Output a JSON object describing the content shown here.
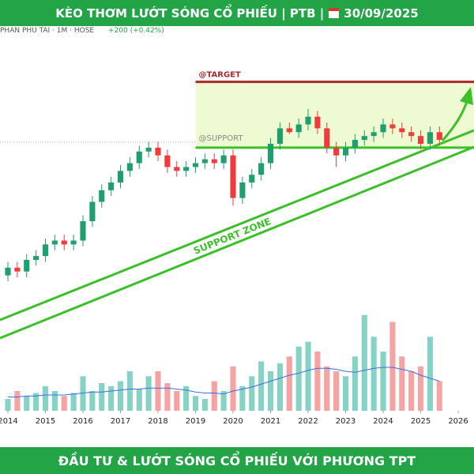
{
  "chart_data": {
    "type": "candlestick",
    "title": "KÈO THƠM LƯỚT SÓNG CỔ PHIẾU | PTB |",
    "date": "30/09/2025",
    "subtitle": "PHAN PHU TAI · 1M · HOSE",
    "change": "+200 (+0.42%)",
    "footer": "ĐẦU TƯ & LƯỚT SÓNG CỔ PHIẾU VỚI PHƯƠNG TPT",
    "zone_label": "SUPPORT ZONE",
    "target_label": "@TARGET",
    "support_label": "@SUPPORT",
    "target": 86,
    "support": 69,
    "target_color": "#a52a2a",
    "support_color": "#3cc02a",
    "zone_fill": "#eefbd2",
    "up_color": "#1f9e6e",
    "down_color": "#ef3b3b",
    "volume_up_color": "#86d3c6",
    "volume_down_color": "#f5a3a3",
    "ma_color": "#3d6fe0",
    "xlim": [
      2013.79,
      2026.42
    ],
    "xticks": [
      2014,
      2015,
      2016,
      2017,
      2018,
      2019,
      2020,
      2021,
      2022,
      2023,
      2024,
      2025,
      2026
    ],
    "ylim": [
      0,
      100
    ],
    "volume_lim": [
      0,
      100
    ],
    "x": [
      2014,
      2014.25,
      2014.5,
      2014.75,
      2015,
      2015.25,
      2015.5,
      2015.75,
      2016,
      2016.25,
      2016.5,
      2016.75,
      2017,
      2017.25,
      2017.5,
      2017.75,
      2018,
      2018.25,
      2018.5,
      2018.75,
      2019,
      2019.25,
      2019.5,
      2019.75,
      2020,
      2020.25,
      2020.5,
      2020.75,
      2021,
      2021.25,
      2021.5,
      2021.75,
      2022,
      2022.25,
      2022.5,
      2022.75,
      2023,
      2023.25,
      2023.5,
      2023.75,
      2024,
      2024.25,
      2024.5,
      2024.75,
      2025,
      2025.25,
      2025.5
    ],
    "candles": [
      [
        36,
        39.5,
        34.5,
        38
      ],
      [
        38,
        39.5,
        35.5,
        37
      ],
      [
        37,
        41.5,
        35.5,
        40
      ],
      [
        40,
        42.5,
        38.5,
        41
      ],
      [
        41,
        45.5,
        39.5,
        44
      ],
      [
        44,
        46.5,
        42.5,
        45
      ],
      [
        45,
        46.5,
        42.5,
        44
      ],
      [
        44,
        46.5,
        42.5,
        45
      ],
      [
        45,
        51.5,
        43.5,
        50
      ],
      [
        50,
        56.5,
        48.5,
        55
      ],
      [
        55,
        59.5,
        53.5,
        58
      ],
      [
        58,
        61.5,
        56.5,
        60
      ],
      [
        60,
        64.5,
        58.5,
        63
      ],
      [
        63,
        66.5,
        61.5,
        65
      ],
      [
        65,
        69.5,
        63.5,
        68
      ],
      [
        68,
        70.5,
        66.5,
        69
      ],
      [
        69,
        70.5,
        65.5,
        67
      ],
      [
        67,
        68.5,
        62.5,
        64
      ],
      [
        64,
        65.5,
        61.5,
        63
      ],
      [
        63,
        65.5,
        61.5,
        64
      ],
      [
        64,
        66.5,
        62.5,
        65
      ],
      [
        65,
        67.5,
        63.5,
        66
      ],
      [
        66,
        67.5,
        63.5,
        65
      ],
      [
        65,
        68.5,
        63.5,
        67
      ],
      [
        67,
        68.5,
        54,
        56
      ],
      [
        56,
        61.5,
        54.5,
        60
      ],
      [
        60,
        63.5,
        58.5,
        62
      ],
      [
        62,
        66.5,
        60.5,
        65
      ],
      [
        65,
        71.5,
        63.5,
        70
      ],
      [
        70,
        75.5,
        68.5,
        74
      ],
      [
        74,
        75.5,
        72.5,
        73
      ],
      [
        73,
        76.5,
        71.5,
        75
      ],
      [
        75,
        79,
        73.5,
        77
      ],
      [
        77,
        78.5,
        72.5,
        74
      ],
      [
        74,
        75.5,
        67.5,
        69
      ],
      [
        69,
        70.5,
        64,
        67
      ],
      [
        67,
        70.5,
        65.5,
        69
      ],
      [
        69,
        72.5,
        67.5,
        71
      ],
      [
        71,
        73.5,
        69.5,
        72
      ],
      [
        72,
        74.5,
        70.5,
        73
      ],
      [
        73,
        76.5,
        71.5,
        75
      ],
      [
        75,
        76.5,
        72.5,
        74
      ],
      [
        74,
        75.5,
        71.5,
        73
      ],
      [
        73,
        74.5,
        70.5,
        72
      ],
      [
        72,
        73.5,
        68.5,
        70
      ],
      [
        70,
        74.5,
        68.5,
        73
      ],
      [
        73,
        74.5,
        69.5,
        71
      ]
    ],
    "volume": [
      12,
      20,
      15,
      18,
      25,
      20,
      15,
      18,
      35,
      20,
      28,
      25,
      30,
      40,
      22,
      35,
      40,
      28,
      20,
      25,
      15,
      12,
      30,
      20,
      45,
      25,
      35,
      50,
      40,
      48,
      55,
      65,
      70,
      60,
      45,
      40,
      35,
      55,
      97,
      75,
      60,
      90,
      55,
      40,
      45,
      75,
      30
    ],
    "volume_ma": [
      14,
      14,
      15,
      15,
      16,
      16,
      16,
      17,
      18,
      19,
      19,
      20,
      21,
      22,
      22,
      23,
      23,
      23,
      22,
      21,
      19,
      18,
      18,
      17,
      20,
      22,
      24,
      27,
      30,
      33,
      36,
      38,
      41,
      43,
      43,
      42,
      40,
      39,
      41,
      43,
      44,
      44,
      42,
      40,
      36,
      33,
      30
    ]
  }
}
